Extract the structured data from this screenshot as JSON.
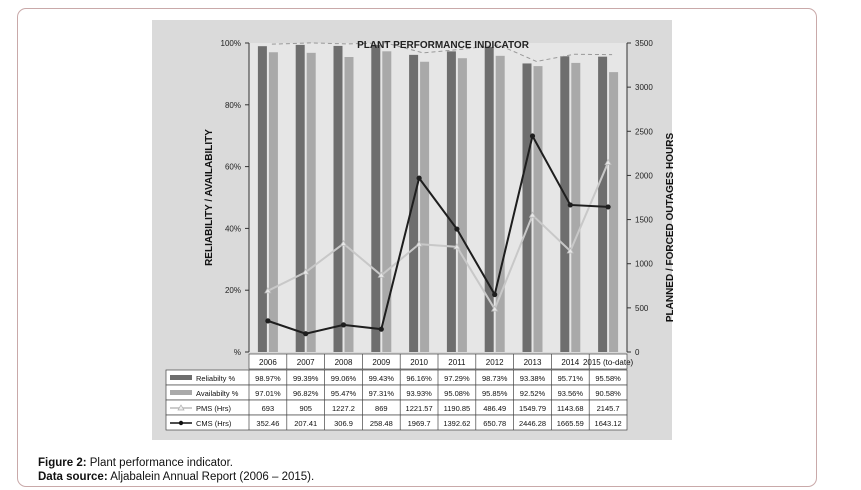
{
  "caption": {
    "figure_label": "Figure 2:",
    "figure_text": "Plant performance indicator.",
    "source_label": "Data source:",
    "source_text": "Aljabalein Annual Report (2006 – 2015)."
  },
  "chart_data": {
    "type": "bar",
    "title": "PLANT PERFORMANCE INDICATOR",
    "ylabel": "RELIABILITY / AVAILABILITY",
    "y2label": "PLANNED / FORCED OUTAGES HOURS",
    "categories": [
      "2006",
      "2007",
      "2008",
      "2009",
      "2010",
      "2011",
      "2012",
      "2013",
      "2014",
      "2015 (to-date)"
    ],
    "ylim": [
      0,
      100
    ],
    "y_ticks": [
      "100%",
      "80%",
      "60%",
      "40%",
      "20%",
      "%"
    ],
    "y2lim": [
      0,
      3500
    ],
    "y2_ticks": [
      "3500",
      "3000",
      "2500",
      "2000",
      "1500",
      "1000",
      "500",
      "0"
    ],
    "series": [
      {
        "name": "Reliabilty %",
        "kind": "bar",
        "axis": "left",
        "color": "#6e6e6e",
        "values": [
          98.97,
          99.39,
          99.06,
          99.43,
          96.16,
          97.29,
          98.73,
          93.38,
          95.71,
          95.58
        ],
        "labels": [
          "98.97%",
          "99.39%",
          "99.06%",
          "99.43%",
          "96.16%",
          "97.29%",
          "98.73%",
          "93.38%",
          "95.71%",
          "95.58%"
        ]
      },
      {
        "name": "Availabilty %",
        "kind": "bar",
        "axis": "left",
        "color": "#a9a9a9",
        "values": [
          97.01,
          96.82,
          95.47,
          97.31,
          93.93,
          95.08,
          95.85,
          92.52,
          93.56,
          90.58
        ],
        "labels": [
          "97.01%",
          "96.82%",
          "95.47%",
          "97.31%",
          "93.93%",
          "95.08%",
          "95.85%",
          "92.52%",
          "93.56%",
          "90.58%"
        ]
      },
      {
        "name": "PMS (Hrs)",
        "kind": "line",
        "axis": "right",
        "color": "#c8c8c8",
        "values": [
          693,
          905,
          1227.2,
          869,
          1221.57,
          1190.85,
          486.49,
          1549.79,
          1143.68,
          2145.7
        ],
        "labels": [
          "693",
          "905",
          "1227.2",
          "869",
          "1221.57",
          "1190.85",
          "486.49",
          "1549.79",
          "1143.68",
          "2145.7"
        ]
      },
      {
        "name": "CMS (Hrs)",
        "kind": "line",
        "axis": "right",
        "color": "#1e1e1e",
        "values": [
          352.46,
          207.41,
          306.9,
          258.48,
          1969.7,
          1392.62,
          650.78,
          2446.28,
          1665.59,
          1643.12
        ],
        "labels": [
          "352.46",
          "207.41",
          "306.9",
          "258.48",
          "1969.7",
          "1392.62",
          "650.78",
          "2446.28",
          "1665.59",
          "1643.12"
        ]
      }
    ],
    "grid": false,
    "legend": "data-table-below"
  }
}
